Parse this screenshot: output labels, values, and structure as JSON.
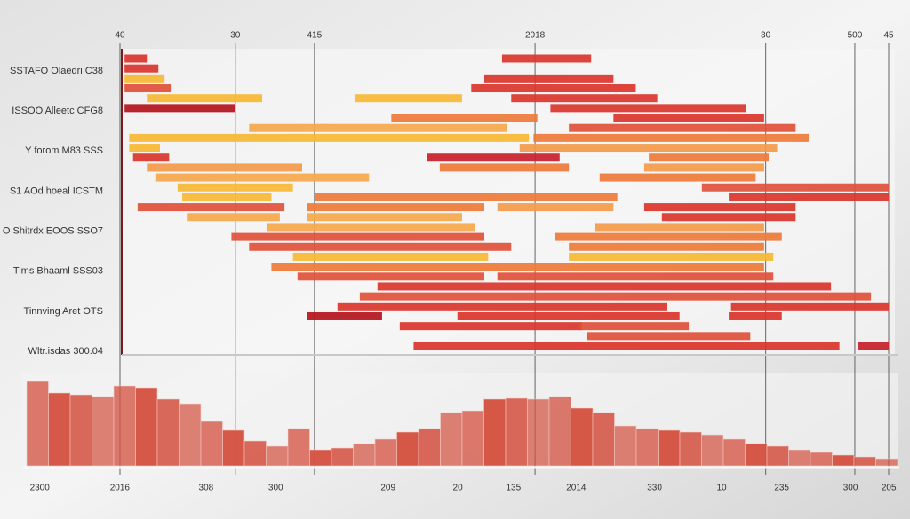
{
  "chart_data": [
    {
      "type": "range",
      "categories": [
        "SSTAFO Olaedri C38",
        "ISSOO Alleetc CFG8",
        "Y forom M83 SSS",
        "S1 AOd hoeal ICSTM",
        "O Shitrdx EOOS SSO7",
        "Tims Bhaaml SSS03",
        "Tinnving Aret OTS",
        "Wltr.isdas 300.04"
      ],
      "xlim": [
        0,
        100
      ],
      "xticks": [
        {
          "value": 0,
          "label": "40"
        },
        {
          "value": 15,
          "label": "30"
        },
        {
          "value": 25.3,
          "label": "415"
        },
        {
          "value": 54,
          "label": "2018"
        },
        {
          "value": 84,
          "label": "30"
        },
        {
          "value": 95.6,
          "label": "500"
        },
        {
          "value": 100,
          "label": "45"
        }
      ],
      "grid": true,
      "lanes": [
        {
          "segments": [
            {
              "start": 0.6,
              "end": 3.5,
              "color": "#d9342b"
            },
            {
              "start": 49.7,
              "end": 61.3,
              "color": "#d9342b"
            }
          ]
        },
        {
          "segments": [
            {
              "start": 0.6,
              "end": 5,
              "color": "#d9342b"
            }
          ]
        },
        {
          "segments": [
            {
              "start": 0.6,
              "end": 5.8,
              "color": "#f7b833"
            },
            {
              "start": 47.4,
              "end": 64.2,
              "color": "#d9342b"
            }
          ]
        },
        {
          "segments": [
            {
              "start": 0.6,
              "end": 6.6,
              "color": "#e0503a"
            },
            {
              "start": 45.7,
              "end": 67.1,
              "color": "#d9342b"
            }
          ]
        },
        {
          "segments": [
            {
              "start": 3.5,
              "end": 18.5,
              "color": "#f7b833"
            },
            {
              "start": 30.6,
              "end": 44.5,
              "color": "#f7b833"
            },
            {
              "start": 50.9,
              "end": 69.9,
              "color": "#d9342b"
            }
          ]
        },
        {
          "segments": [
            {
              "start": 0.6,
              "end": 15,
              "color": "#b3141c"
            },
            {
              "start": 56,
              "end": 81.5,
              "color": "#d9342b"
            }
          ]
        },
        {
          "segments": [
            {
              "start": 35.3,
              "end": 54.3,
              "color": "#ee7a3a"
            },
            {
              "start": 64.2,
              "end": 83.8,
              "color": "#d9342b"
            }
          ]
        },
        {
          "segments": [
            {
              "start": 16.8,
              "end": 50.3,
              "color": "#f5a84a"
            },
            {
              "start": 58.4,
              "end": 87.9,
              "color": "#e0503a"
            }
          ]
        },
        {
          "segments": [
            {
              "start": 1.2,
              "end": 53.2,
              "color": "#f7b833"
            },
            {
              "start": 53.8,
              "end": 89.6,
              "color": "#ee7a3a"
            }
          ]
        },
        {
          "segments": [
            {
              "start": 1.2,
              "end": 5.2,
              "color": "#f7b833"
            },
            {
              "start": 52,
              "end": 85.5,
              "color": "#f29a4a"
            }
          ]
        },
        {
          "segments": [
            {
              "start": 1.7,
              "end": 6.4,
              "color": "#d9342b"
            },
            {
              "start": 39.9,
              "end": 57.2,
              "color": "#c8202a"
            },
            {
              "start": 68.8,
              "end": 84.4,
              "color": "#ee7a3a"
            }
          ]
        },
        {
          "segments": [
            {
              "start": 3.5,
              "end": 23.7,
              "color": "#f29a4a"
            },
            {
              "start": 41.6,
              "end": 58.4,
              "color": "#ee7a3a"
            },
            {
              "start": 68.2,
              "end": 83.8,
              "color": "#f29a4a"
            }
          ]
        },
        {
          "segments": [
            {
              "start": 4.6,
              "end": 32.4,
              "color": "#f5a84a"
            },
            {
              "start": 62.4,
              "end": 82.7,
              "color": "#ee7a3a"
            }
          ]
        },
        {
          "segments": [
            {
              "start": 7.5,
              "end": 22.5,
              "color": "#f7b833"
            },
            {
              "start": 75.7,
              "end": 100,
              "color": "#e0503a"
            }
          ]
        },
        {
          "segments": [
            {
              "start": 8.1,
              "end": 19.7,
              "color": "#f7b833"
            },
            {
              "start": 25.4,
              "end": 64.7,
              "color": "#ee7a3a"
            },
            {
              "start": 79.2,
              "end": 100,
              "color": "#d9342b"
            }
          ]
        },
        {
          "segments": [
            {
              "start": 2.3,
              "end": 21.4,
              "color": "#e0503a"
            },
            {
              "start": 24.3,
              "end": 47.4,
              "color": "#ee7a3a"
            },
            {
              "start": 49.1,
              "end": 64.2,
              "color": "#f29a4a"
            },
            {
              "start": 68.2,
              "end": 87.9,
              "color": "#d9342b"
            }
          ]
        },
        {
          "segments": [
            {
              "start": 8.7,
              "end": 20.8,
              "color": "#f5a84a"
            },
            {
              "start": 24.3,
              "end": 44.5,
              "color": "#f5a84a"
            },
            {
              "start": 70.5,
              "end": 87.9,
              "color": "#d9342b"
            }
          ]
        },
        {
          "segments": [
            {
              "start": 19.1,
              "end": 46.2,
              "color": "#f5a84a"
            },
            {
              "start": 61.8,
              "end": 83.8,
              "color": "#f29a4a"
            }
          ]
        },
        {
          "segments": [
            {
              "start": 14.5,
              "end": 47.4,
              "color": "#e0503a"
            },
            {
              "start": 56.6,
              "end": 86.1,
              "color": "#ee7a3a"
            }
          ]
        },
        {
          "segments": [
            {
              "start": 16.8,
              "end": 50.9,
              "color": "#e0503a"
            },
            {
              "start": 58.4,
              "end": 83.8,
              "color": "#ee7a3a"
            }
          ]
        },
        {
          "segments": [
            {
              "start": 22.5,
              "end": 47.9,
              "color": "#f7b833"
            },
            {
              "start": 58.4,
              "end": 85,
              "color": "#f7b833"
            }
          ]
        },
        {
          "segments": [
            {
              "start": 19.7,
              "end": 83.8,
              "color": "#ee7a3a"
            }
          ]
        },
        {
          "segments": [
            {
              "start": 23.1,
              "end": 47.4,
              "color": "#e0503a"
            },
            {
              "start": 49.1,
              "end": 85,
              "color": "#e0503a"
            }
          ]
        },
        {
          "segments": [
            {
              "start": 33.5,
              "end": 92.5,
              "color": "#d9342b"
            }
          ]
        },
        {
          "segments": [
            {
              "start": 31.2,
              "end": 97.7,
              "color": "#e0503a"
            }
          ]
        },
        {
          "segments": [
            {
              "start": 28.3,
              "end": 71.1,
              "color": "#d9342b"
            },
            {
              "start": 79.5,
              "end": 100,
              "color": "#d9342b"
            }
          ]
        },
        {
          "segments": [
            {
              "start": 24.3,
              "end": 34.1,
              "color": "#b3141c"
            },
            {
              "start": 43.9,
              "end": 72.8,
              "color": "#d9342b"
            },
            {
              "start": 79.2,
              "end": 86.1,
              "color": "#d9342b"
            }
          ]
        },
        {
          "segments": [
            {
              "start": 36.4,
              "end": 60.1,
              "color": "#d9342b"
            },
            {
              "start": 59.8,
              "end": 74,
              "color": "#e0503a"
            }
          ]
        },
        {
          "segments": [
            {
              "start": 60.7,
              "end": 82,
              "color": "#e0503a"
            }
          ]
        },
        {
          "segments": [
            {
              "start": 38.2,
              "end": 93.6,
              "color": "#d9342b"
            },
            {
              "start": 96,
              "end": 100,
              "color": "#c8202a"
            }
          ]
        }
      ]
    },
    {
      "type": "histogram",
      "bins": [
        0,
        2.5,
        5,
        7.5,
        10,
        12.5,
        15,
        17.5,
        20,
        22.5,
        25,
        27.5,
        30,
        32.5,
        35,
        37.5,
        40,
        42.5,
        45,
        47.5,
        50,
        52.5,
        55,
        57.5,
        60,
        62.5,
        65,
        67.5,
        70,
        72.5,
        75,
        77.5,
        80,
        82.5,
        85,
        87.5,
        90,
        92.5,
        95,
        97.5,
        100
      ],
      "values": [
        95,
        82,
        80,
        78,
        90,
        88,
        75,
        70,
        50,
        40,
        28,
        22,
        42,
        18,
        20,
        25,
        30,
        38,
        42,
        60,
        62,
        75,
        76,
        75,
        78,
        65,
        60,
        45,
        42,
        40,
        38,
        35,
        30,
        25,
        22,
        18,
        15,
        12,
        10,
        8
      ],
      "color": "#d4503f",
      "xlim": [
        0,
        100
      ],
      "ylim": [
        0,
        100
      ],
      "xticks": [
        {
          "value": 1.5,
          "label": "2300"
        },
        {
          "value": 10.7,
          "label": "2016"
        },
        {
          "value": 20.6,
          "label": "308"
        },
        {
          "value": 28.6,
          "label": "300"
        },
        {
          "value": 41.5,
          "label": "209"
        },
        {
          "value": 49.5,
          "label": "20"
        },
        {
          "value": 55.9,
          "label": "135"
        },
        {
          "value": 63.1,
          "label": "2014"
        },
        {
          "value": 72.1,
          "label": "330"
        },
        {
          "value": 79.8,
          "label": "10"
        },
        {
          "value": 86.7,
          "label": "235"
        },
        {
          "value": 94.6,
          "label": "300"
        },
        {
          "value": 99,
          "label": "205"
        }
      ]
    }
  ]
}
